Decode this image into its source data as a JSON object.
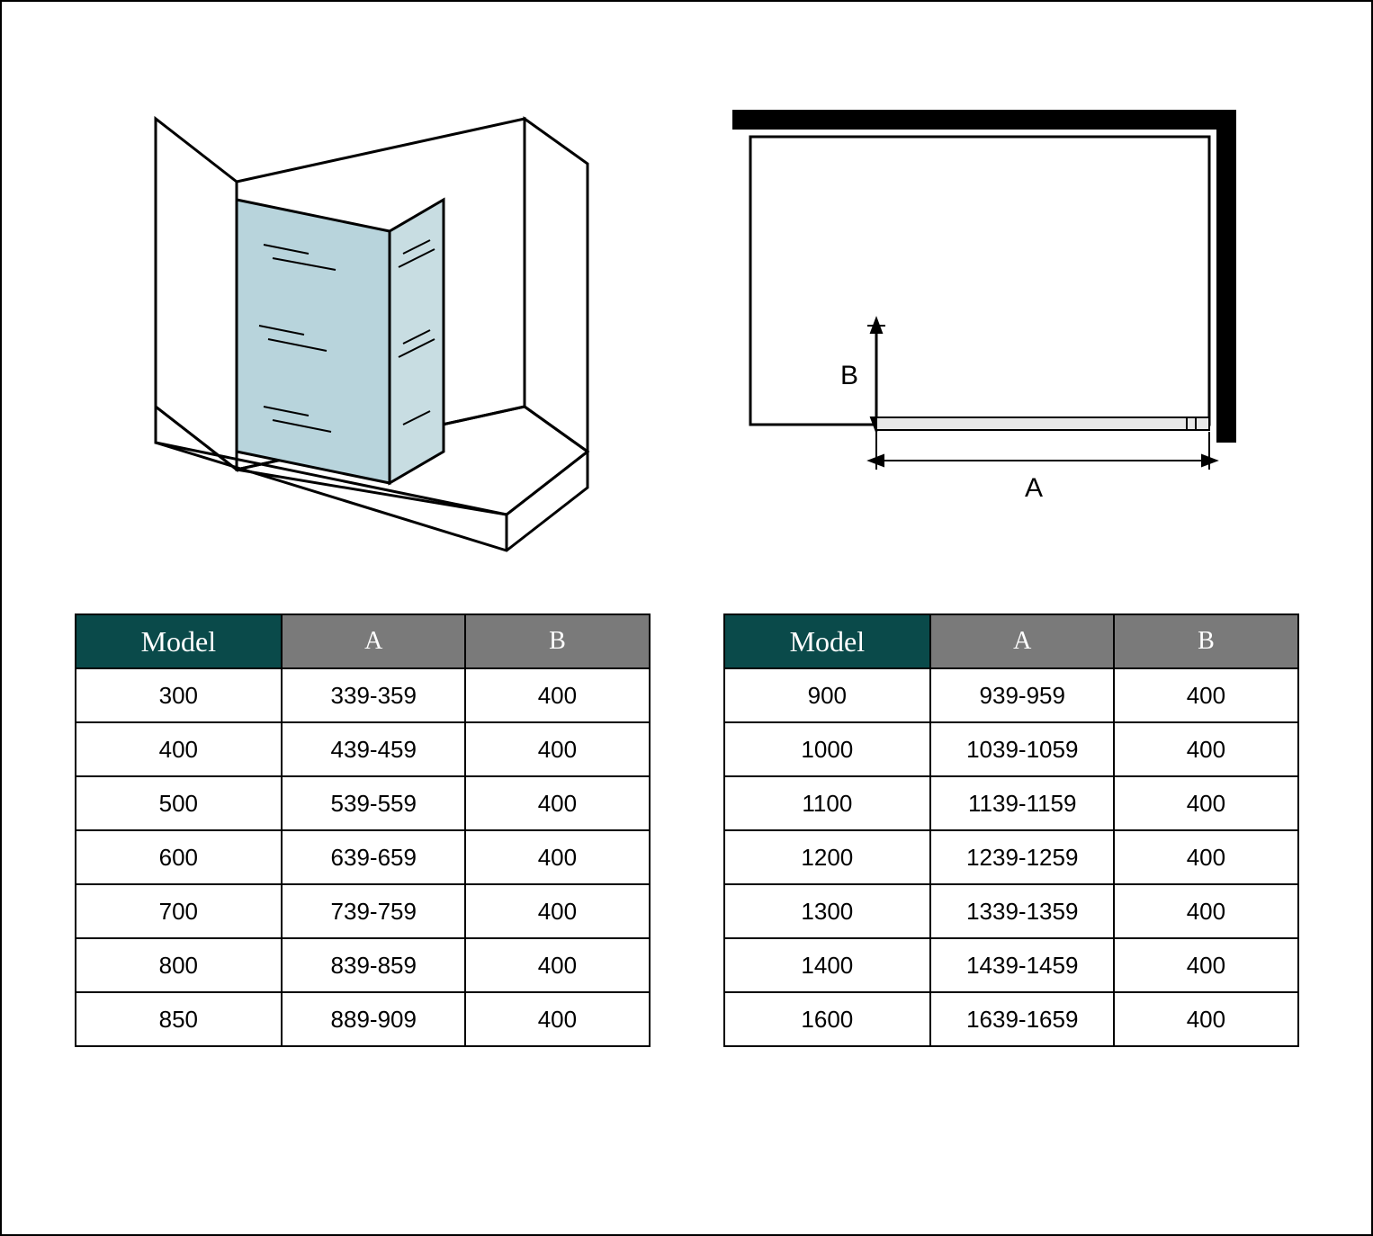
{
  "diagram_right": {
    "label_a": "A",
    "label_b": "B",
    "label_fontsize": 30,
    "frame_color": "#000000",
    "frame_thickness": 18
  },
  "glass_color": "#b8d4dc",
  "line_color": "#000000",
  "line_width": 3,
  "table_left": {
    "headers": [
      "Model",
      "A",
      "B"
    ],
    "header_bg_model": "#0a4a4a",
    "header_bg_dim": "#7a7a7a",
    "header_fg": "#ffffff",
    "rows": [
      [
        "300",
        "339-359",
        "400"
      ],
      [
        "400",
        "439-459",
        "400"
      ],
      [
        "500",
        "539-559",
        "400"
      ],
      [
        "600",
        "639-659",
        "400"
      ],
      [
        "700",
        "739-759",
        "400"
      ],
      [
        "800",
        "839-859",
        "400"
      ],
      [
        "850",
        "889-909",
        "400"
      ]
    ]
  },
  "table_right": {
    "headers": [
      "Model",
      "A",
      "B"
    ],
    "header_bg_model": "#0a4a4a",
    "header_bg_dim": "#7a7a7a",
    "header_fg": "#ffffff",
    "rows": [
      [
        "900",
        "939-959",
        "400"
      ],
      [
        "1000",
        "1039-1059",
        "400"
      ],
      [
        "1100",
        "1139-1159",
        "400"
      ],
      [
        "1200",
        "1239-1259",
        "400"
      ],
      [
        "1300",
        "1339-1359",
        "400"
      ],
      [
        "1400",
        "1439-1459",
        "400"
      ],
      [
        "1600",
        "1639-1659",
        "400"
      ]
    ]
  }
}
